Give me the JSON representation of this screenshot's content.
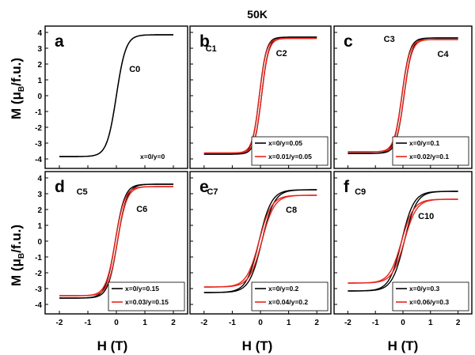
{
  "figure": {
    "title": "50K",
    "xlabel": "H (T)",
    "ylabel_main": "M (",
    "ylabel_mu": "μ",
    "ylabel_sub": "B",
    "ylabel_tail": "/f.u.)"
  },
  "colors": {
    "black_series": "#000000",
    "red_series": "#e8251b"
  },
  "chart_data": [
    {
      "panel": "a",
      "type": "line",
      "xlim": [
        -2.5,
        2.5
      ],
      "ylim": [
        -4.6,
        4.4
      ],
      "xticks": [
        -2,
        -1,
        0,
        1,
        2
      ],
      "yticks": [
        -4,
        -3,
        -2,
        -1,
        0,
        1,
        2,
        3,
        4
      ],
      "grid": false,
      "legend": "bottom-right",
      "series": [
        {
          "name": "x=0/y=0",
          "color": "#000000",
          "ms": 3.85,
          "k": 6.0,
          "x0": 0.0
        }
      ],
      "annotations": [
        {
          "text": "C0",
          "x": 0.45,
          "y": 1.5
        }
      ]
    },
    {
      "panel": "b",
      "type": "line",
      "xlim": [
        -2.5,
        2.5
      ],
      "ylim": [
        -4.6,
        4.4
      ],
      "xticks": [
        -2,
        -1,
        0,
        1,
        2
      ],
      "yticks": [
        -4,
        -3,
        -2,
        -1,
        0,
        1,
        2,
        3,
        4
      ],
      "grid": false,
      "legend": "bottom-right",
      "series": [
        {
          "name": "x=0/y=0.05",
          "color": "#000000",
          "ms": 3.7,
          "k": 8.0,
          "x0": 0.04
        },
        {
          "name": "x=0.01/y=0.05",
          "color": "#e8251b",
          "ms": 3.62,
          "k": 8.0,
          "x0": 0.04
        }
      ],
      "annotations": [
        {
          "text": "C1",
          "x": -1.95,
          "y": 2.8
        },
        {
          "text": "C2",
          "x": 0.55,
          "y": 2.5
        }
      ]
    },
    {
      "panel": "c",
      "type": "line",
      "xlim": [
        -2.5,
        2.5
      ],
      "ylim": [
        -4.6,
        4.4
      ],
      "xticks": [
        -2,
        -1,
        0,
        1,
        2
      ],
      "yticks": [
        -4,
        -3,
        -2,
        -1,
        0,
        1,
        2,
        3,
        4
      ],
      "grid": false,
      "legend": "bottom-right",
      "series": [
        {
          "name": "x=0/y=0.1",
          "color": "#000000",
          "ms": 3.65,
          "k": 7.0,
          "x0": 0.04
        },
        {
          "name": "x=0.02/y=0.1",
          "color": "#e8251b",
          "ms": 3.55,
          "k": 7.0,
          "x0": 0.04
        }
      ],
      "annotations": [
        {
          "text": "C3",
          "x": -0.7,
          "y": 3.4
        },
        {
          "text": "C4",
          "x": 1.25,
          "y": 2.45
        }
      ]
    },
    {
      "panel": "d",
      "type": "line",
      "xlim": [
        -2.5,
        2.5
      ],
      "ylim": [
        -4.6,
        4.4
      ],
      "xticks": [
        -2,
        -1,
        0,
        1,
        2
      ],
      "yticks": [
        -4,
        -3,
        -2,
        -1,
        0,
        1,
        2,
        3,
        4
      ],
      "grid": false,
      "legend": "bottom-right",
      "series": [
        {
          "name": "x=0/y=0.15",
          "color": "#000000",
          "ms": 3.6,
          "k": 6.0,
          "x0": 0.04
        },
        {
          "name": "x=0.03/y=0.15",
          "color": "#e8251b",
          "ms": 3.45,
          "k": 6.0,
          "x0": 0.04
        }
      ],
      "annotations": [
        {
          "text": "C5",
          "x": -1.4,
          "y": 2.95
        },
        {
          "text": "C6",
          "x": 0.7,
          "y": 1.85
        }
      ]
    },
    {
      "panel": "e",
      "type": "line",
      "xlim": [
        -2.5,
        2.5
      ],
      "ylim": [
        -4.6,
        4.4
      ],
      "xticks": [
        -2,
        -1,
        0,
        1,
        2
      ],
      "yticks": [
        -4,
        -3,
        -2,
        -1,
        0,
        1,
        2,
        3,
        4
      ],
      "grid": false,
      "legend": "bottom-right",
      "series": [
        {
          "name": "x=0/y=0.2",
          "color": "#000000",
          "ms": 3.25,
          "k": 4.5,
          "x0": 0.05
        },
        {
          "name": "x=0.04/y=0.2",
          "color": "#e8251b",
          "ms": 2.9,
          "k": 4.5,
          "x0": 0.05
        }
      ],
      "annotations": [
        {
          "text": "C7",
          "x": -1.9,
          "y": 2.95
        },
        {
          "text": "C8",
          "x": 0.9,
          "y": 1.8
        }
      ]
    },
    {
      "panel": "f",
      "type": "line",
      "xlim": [
        -2.5,
        2.5
      ],
      "ylim": [
        -4.6,
        4.4
      ],
      "xticks": [
        -2,
        -1,
        0,
        1,
        2
      ],
      "yticks": [
        -4,
        -3,
        -2,
        -1,
        0,
        1,
        2,
        3,
        4
      ],
      "grid": false,
      "legend": "bottom-right",
      "series": [
        {
          "name": "x=0/y=0.3",
          "color": "#000000",
          "ms": 3.15,
          "k": 4.5,
          "x0": 0.05
        },
        {
          "name": "x=0.06/y=0.3",
          "color": "#e8251b",
          "ms": 2.65,
          "k": 4.5,
          "x0": 0.05
        }
      ],
      "annotations": [
        {
          "text": "C9",
          "x": -1.75,
          "y": 2.95
        },
        {
          "text": "C10",
          "x": 0.55,
          "y": 1.4
        }
      ]
    }
  ]
}
